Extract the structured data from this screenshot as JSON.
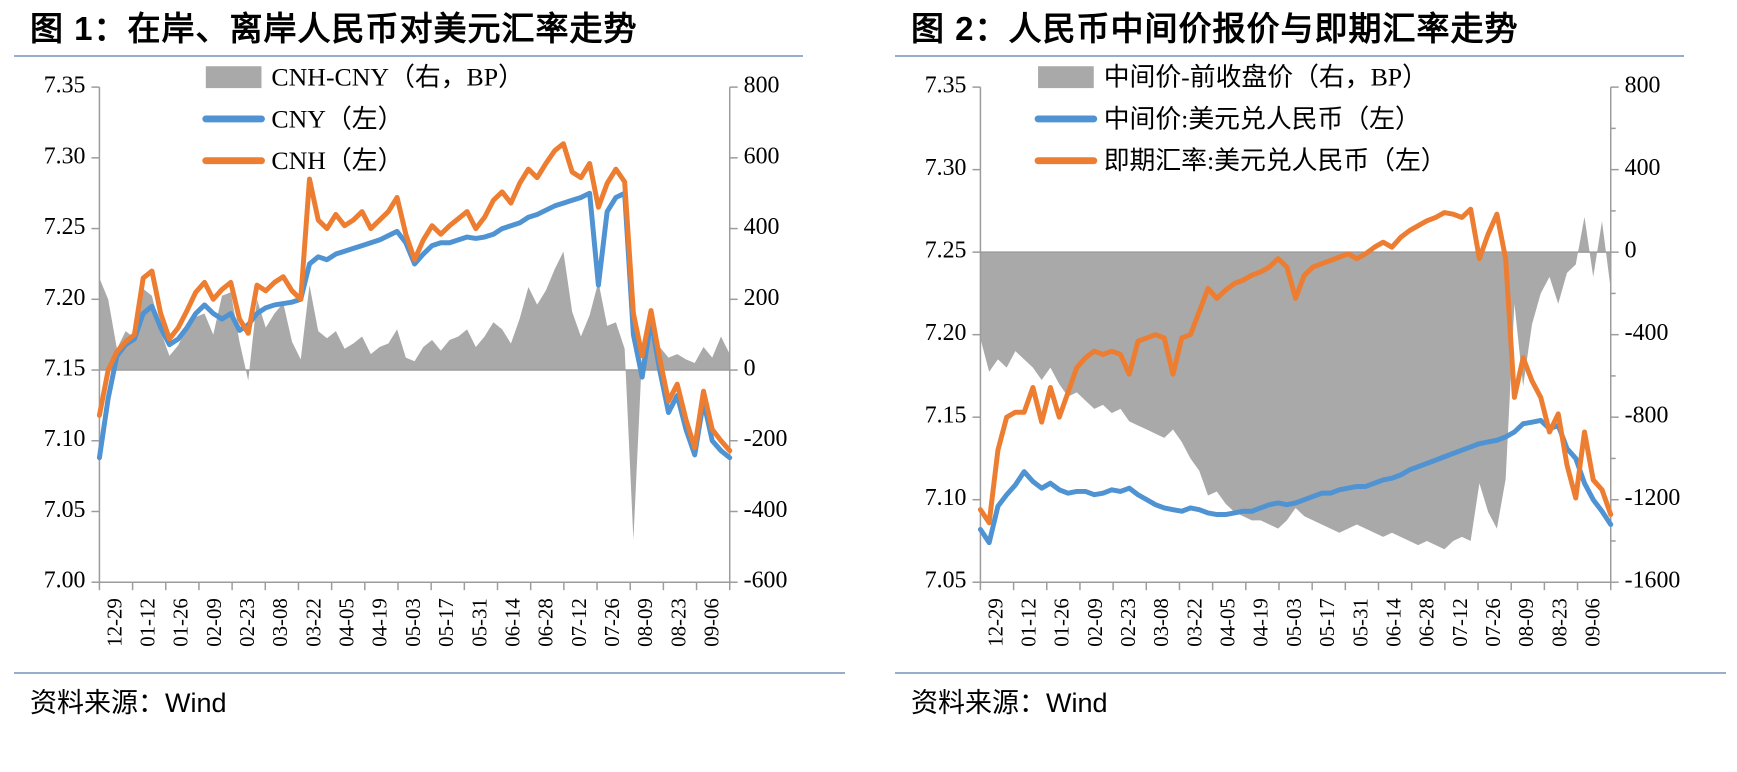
{
  "theme": {
    "rule_color": "#97AECB",
    "axis_color": "#9C9C9C",
    "text_color": "#000000",
    "area_gray": "#A9A9A9",
    "line_blue": "#4F93D2",
    "line_orange": "#ED7D31"
  },
  "chart_data": [
    {
      "type": "combo",
      "title": "图 1：在岸、离岸人民币对美元汇率走势",
      "source_prefix": "资料来源：",
      "source_name": "Wind",
      "x_labels": [
        "12-29",
        "01-12",
        "01-26",
        "02-09",
        "02-23",
        "03-08",
        "03-22",
        "04-05",
        "04-19",
        "05-03",
        "05-17",
        "05-31",
        "06-14",
        "06-28",
        "07-12",
        "07-26",
        "08-09",
        "08-23",
        "09-06"
      ],
      "left_axis": {
        "min": 7.0,
        "max": 7.35,
        "ticks": [
          "7.35",
          "7.30",
          "7.25",
          "7.20",
          "7.15",
          "7.10",
          "7.05",
          "7.00"
        ]
      },
      "right_axis": {
        "min": -600,
        "max": 800,
        "ticks": [
          "800",
          "600",
          "400",
          "200",
          "0",
          "-200",
          "-400",
          "-600"
        ],
        "minor_step": 0
      },
      "series": [
        {
          "name": "CNH-CNY（右，BP）",
          "kind": "area",
          "axis": "right",
          "color": "#A9A9A9",
          "values": [
            260,
            200,
            60,
            110,
            90,
            230,
            210,
            110,
            40,
            70,
            120,
            150,
            160,
            100,
            210,
            220,
            80,
            -30,
            200,
            120,
            160,
            190,
            80,
            30,
            240,
            110,
            90,
            110,
            60,
            75,
            95,
            45,
            65,
            75,
            115,
            35,
            25,
            65,
            85,
            55,
            85,
            95,
            115,
            65,
            95,
            135,
            115,
            75,
            145,
            235,
            185,
            225,
            285,
            335,
            165,
            95,
            155,
            250,
            125,
            135,
            60,
            -480,
            50,
            95,
            65,
            35,
            45,
            30,
            20,
            65,
            35,
            95,
            45
          ]
        },
        {
          "name": "CNY（左）",
          "kind": "line",
          "axis": "left",
          "color": "#4F93D2",
          "values": [
            7.088,
            7.13,
            7.16,
            7.168,
            7.172,
            7.19,
            7.195,
            7.18,
            7.168,
            7.172,
            7.18,
            7.19,
            7.196,
            7.19,
            7.186,
            7.19,
            7.178,
            7.182,
            7.19,
            7.194,
            7.196,
            7.197,
            7.198,
            7.2,
            7.225,
            7.23,
            7.228,
            7.232,
            7.234,
            7.236,
            7.238,
            7.24,
            7.242,
            7.245,
            7.248,
            7.24,
            7.225,
            7.232,
            7.238,
            7.24,
            7.24,
            7.242,
            7.244,
            7.243,
            7.244,
            7.246,
            7.25,
            7.252,
            7.254,
            7.258,
            7.26,
            7.263,
            7.266,
            7.268,
            7.27,
            7.272,
            7.275,
            7.21,
            7.262,
            7.272,
            7.275,
            7.175,
            7.145,
            7.185,
            7.15,
            7.12,
            7.132,
            7.108,
            7.09,
            7.128,
            7.1,
            7.093,
            7.088
          ]
        },
        {
          "name": "CNH（左）",
          "kind": "line",
          "axis": "left",
          "color": "#ED7D31",
          "values": [
            7.118,
            7.15,
            7.163,
            7.17,
            7.175,
            7.215,
            7.22,
            7.19,
            7.172,
            7.18,
            7.192,
            7.205,
            7.212,
            7.2,
            7.207,
            7.212,
            7.186,
            7.176,
            7.21,
            7.206,
            7.212,
            7.216,
            7.206,
            7.2,
            7.285,
            7.256,
            7.25,
            7.26,
            7.252,
            7.256,
            7.262,
            7.25,
            7.256,
            7.262,
            7.272,
            7.246,
            7.228,
            7.242,
            7.252,
            7.246,
            7.252,
            7.257,
            7.262,
            7.25,
            7.258,
            7.27,
            7.276,
            7.268,
            7.282,
            7.292,
            7.286,
            7.296,
            7.305,
            7.31,
            7.29,
            7.286,
            7.296,
            7.265,
            7.282,
            7.292,
            7.283,
            7.19,
            7.16,
            7.192,
            7.158,
            7.128,
            7.14,
            7.115,
            7.095,
            7.135,
            7.108,
            7.1,
            7.093
          ]
        }
      ]
    },
    {
      "type": "combo",
      "title": "图 2：人民币中间价报价与即期汇率走势",
      "source_prefix": "资料来源：",
      "source_name": "Wind",
      "x_labels": [
        "12-29",
        "01-12",
        "01-26",
        "02-09",
        "02-23",
        "03-08",
        "03-22",
        "04-05",
        "04-19",
        "05-03",
        "05-17",
        "05-31",
        "06-14",
        "06-28",
        "07-12",
        "07-26",
        "08-09",
        "08-23",
        "09-06"
      ],
      "left_axis": {
        "min": 7.05,
        "max": 7.35,
        "ticks": [
          "7.35",
          "7.30",
          "7.25",
          "7.20",
          "7.15",
          "7.10",
          "7.05"
        ]
      },
      "right_axis": {
        "min": -1600,
        "max": 800,
        "ticks": [
          "800",
          "400",
          "0",
          "-400",
          "-800",
          "-1200",
          "-1600"
        ],
        "minor_step": 200
      },
      "series": [
        {
          "name": "中间价-前收盘价（右，BP）",
          "kind": "area",
          "axis": "right",
          "color": "#A9A9A9",
          "values": [
            -420,
            -580,
            -520,
            -560,
            -480,
            -520,
            -560,
            -620,
            -560,
            -640,
            -700,
            -680,
            -720,
            -760,
            -740,
            -780,
            -760,
            -820,
            -840,
            -860,
            -880,
            -900,
            -860,
            -920,
            -1000,
            -1060,
            -1180,
            -1160,
            -1220,
            -1260,
            -1280,
            -1300,
            -1300,
            -1320,
            -1340,
            -1300,
            -1240,
            -1280,
            -1300,
            -1320,
            -1340,
            -1360,
            -1340,
            -1320,
            -1340,
            -1360,
            -1380,
            -1360,
            -1380,
            -1400,
            -1420,
            -1400,
            -1420,
            -1440,
            -1400,
            -1380,
            -1400,
            -1120,
            -1260,
            -1340,
            -1100,
            -250,
            -650,
            -350,
            -200,
            -120,
            -250,
            -100,
            -60,
            170,
            -120,
            150,
            -180
          ]
        },
        {
          "name": "中间价:美元兑人民币（左）",
          "kind": "line",
          "axis": "left",
          "color": "#4F93D2",
          "values": [
            7.082,
            7.074,
            7.096,
            7.103,
            7.109,
            7.117,
            7.111,
            7.107,
            7.11,
            7.106,
            7.104,
            7.105,
            7.105,
            7.103,
            7.104,
            7.106,
            7.105,
            7.107,
            7.103,
            7.1,
            7.097,
            7.095,
            7.094,
            7.093,
            7.095,
            7.094,
            7.092,
            7.091,
            7.091,
            7.092,
            7.093,
            7.093,
            7.095,
            7.097,
            7.098,
            7.097,
            7.098,
            7.1,
            7.102,
            7.104,
            7.104,
            7.106,
            7.107,
            7.108,
            7.108,
            7.11,
            7.112,
            7.113,
            7.115,
            7.118,
            7.12,
            7.122,
            7.124,
            7.126,
            7.128,
            7.13,
            7.132,
            7.134,
            7.135,
            7.136,
            7.138,
            7.141,
            7.146,
            7.147,
            7.148,
            7.143,
            7.145,
            7.131,
            7.125,
            7.11,
            7.1,
            7.093,
            7.085
          ]
        },
        {
          "name": "即期汇率:美元兑人民币（左）",
          "kind": "line",
          "axis": "left",
          "color": "#ED7D31",
          "values": [
            7.094,
            7.086,
            7.13,
            7.15,
            7.153,
            7.153,
            7.168,
            7.147,
            7.168,
            7.15,
            7.165,
            7.18,
            7.186,
            7.19,
            7.188,
            7.19,
            7.188,
            7.176,
            7.196,
            7.198,
            7.2,
            7.198,
            7.176,
            7.198,
            7.2,
            7.214,
            7.228,
            7.222,
            7.227,
            7.231,
            7.233,
            7.236,
            7.238,
            7.241,
            7.246,
            7.241,
            7.222,
            7.236,
            7.241,
            7.243,
            7.245,
            7.247,
            7.249,
            7.246,
            7.249,
            7.253,
            7.256,
            7.253,
            7.259,
            7.263,
            7.266,
            7.269,
            7.271,
            7.274,
            7.273,
            7.271,
            7.276,
            7.246,
            7.261,
            7.273,
            7.246,
            7.162,
            7.186,
            7.172,
            7.162,
            7.141,
            7.152,
            7.121,
            7.101,
            7.141,
            7.112,
            7.106,
            7.091
          ]
        }
      ]
    }
  ]
}
